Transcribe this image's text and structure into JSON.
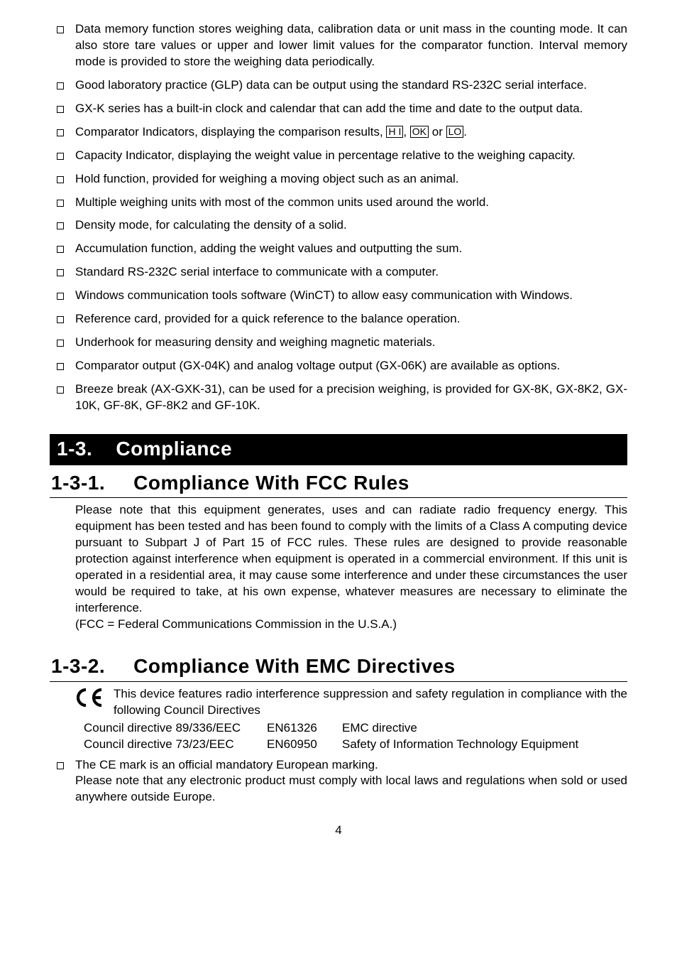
{
  "bullets": [
    "Data memory function stores weighing data, calibration data or unit mass in the counting mode. It can also store tare values or upper and lower limit values for the comparator function. Interval memory mode is provided to store the weighing data periodically.",
    "Good laboratory practice (GLP) data can be output using the standard RS-232C serial interface.",
    "GX-K series has a built-in clock and calendar that can add the time and date to the output data.",
    "__COMPARATOR__",
    "Capacity Indicator, displaying the weight value in percentage relative to the weighing capacity.",
    "Hold function, provided for weighing a moving object such as an animal.",
    "Multiple weighing units with most of the common units used around the world.",
    "Density mode, for calculating the density of a solid.",
    "Accumulation function, adding the weight values and outputting the sum.",
    "Standard RS-232C serial interface to communicate with a computer.",
    "Windows communication tools software (WinCT) to allow easy communication with Windows.",
    "Reference card, provided for a quick reference to the balance operation.",
    "Underhook for measuring density and weighing magnetic materials.",
    "Comparator output (GX-04K) and analog voltage output (GX-06K) are available as options.",
    "Breeze break (AX-GXK-31), can be used for a precision weighing, is provided for GX-8K, GX-8K2, GX-10K, GF-8K, GF-8K2 and GF-10K."
  ],
  "comparator": {
    "pre": "Comparator Indicators, displaying the comparison results, ",
    "hi": "H I",
    "mid1": ", ",
    "ok": "OK",
    "mid2": " or ",
    "lo": "LO",
    "post": "."
  },
  "h_main": {
    "num": "1-3.",
    "txt": "Compliance"
  },
  "h_sub1": {
    "num": "1-3-1.",
    "txt": "Compliance With FCC Rules"
  },
  "fcc_body": "Please note that this equipment generates, uses and can radiate radio frequency energy. This equipment has been tested and has been found to comply with the limits of a Class A computing device pursuant to Subpart J of Part 15 of FCC rules.   These rules are designed to provide reasonable protection against interference when equipment is operated in a commercial environment. If this unit is operated in a residential area, it may cause some interference and under these circumstances the user would be required to take, at his own expense, whatever measures are necessary to eliminate the interference.",
  "fcc_note": "(FCC = Federal Communications Commission in the U.S.A.)",
  "h_sub2": {
    "num": "1-3-2.",
    "txt": "Compliance With EMC Directives"
  },
  "ce_text": "This device features radio interference suppression and safety regulation in compliance with the following Council Directives",
  "directives": [
    {
      "a": "Council directive 89/336/EEC",
      "b": "EN61326",
      "c": "EMC directive"
    },
    {
      "a": "Council directive 73/23/EEC",
      "b": "EN60950",
      "c": "Safety of Information Technology Equipment"
    }
  ],
  "ce_bullet1": "The CE mark is an official mandatory European marking.",
  "ce_bullet2": "Please note that any electronic product must comply with local laws and regulations when sold or used anywhere outside Europe.",
  "page": "4"
}
